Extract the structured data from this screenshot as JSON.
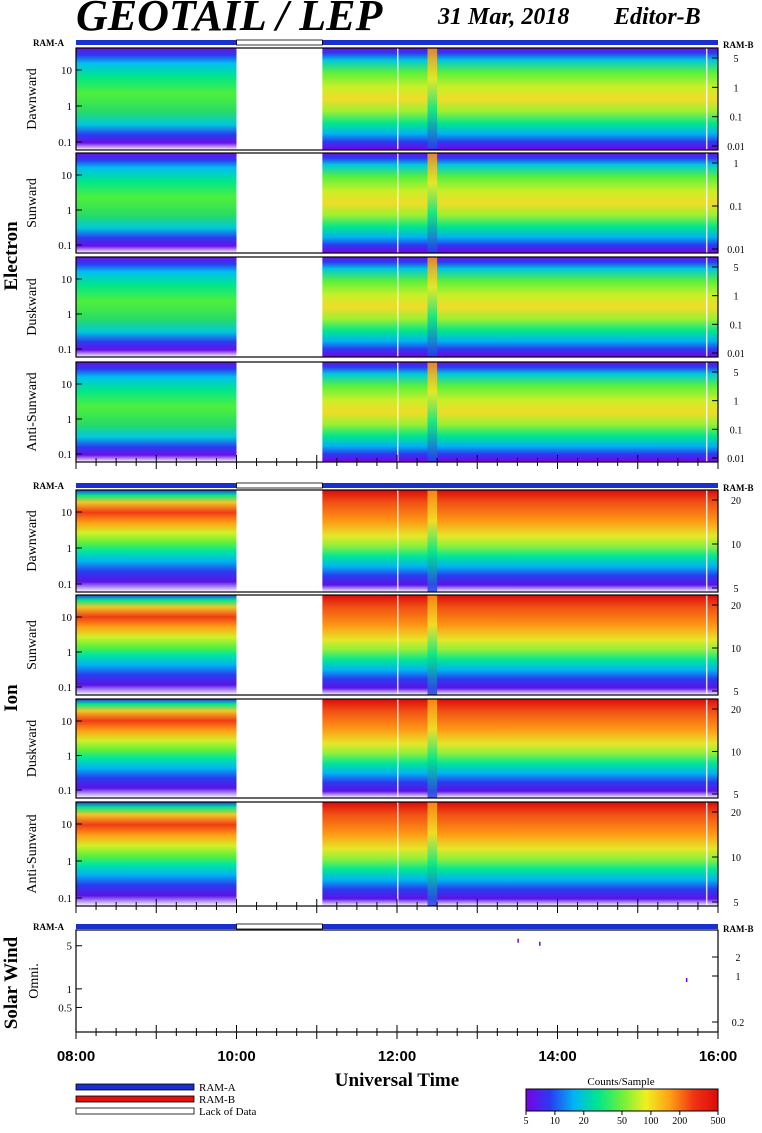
{
  "header": {
    "title": "GEOTAIL / LEP",
    "date": "31 Mar, 2018",
    "editor": "Editor-B"
  },
  "colors": {
    "ram_a": "#1a2fd0",
    "ram_b": "#e01010",
    "lack_of_data": "#ffffff",
    "colorbar": [
      "#7a00e6",
      "#2a3cf0",
      "#00b4f5",
      "#00e68c",
      "#6ef03c",
      "#f0f01e",
      "#ffa014",
      "#f03214",
      "#dc0a0a"
    ]
  },
  "chart_data": [
    {
      "type": "heatmap",
      "group": "Electron",
      "panels": [
        {
          "label": "Dawnward",
          "y_ticks": [
            "10",
            "1",
            "0.1"
          ],
          "right_ticks": [
            "5",
            "1",
            "0.1",
            "0.01"
          ]
        },
        {
          "label": "Sunward",
          "y_ticks": [
            "10",
            "1",
            "0.1"
          ],
          "right_ticks": [
            "1",
            "0.1",
            "0.01"
          ]
        },
        {
          "label": "Duskward",
          "y_ticks": [
            "10",
            "1",
            "0.1"
          ],
          "right_ticks": [
            "5",
            "1",
            "0.1",
            "0.01"
          ]
        },
        {
          "label": "Anti-Sunward",
          "y_ticks": [
            "10",
            "1",
            "0.1"
          ],
          "right_ticks": [
            "5",
            "1",
            "0.1",
            "0.01"
          ]
        }
      ],
      "mode_bar": {
        "left_label": "RAM-A",
        "right_label": "RAM-B",
        "lack_of_data_utc": [
          10.0,
          11.07
        ]
      },
      "x_range": [
        8,
        16
      ],
      "data_gaps_utc": [
        [
          10.0,
          11.07
        ]
      ]
    },
    {
      "type": "heatmap",
      "group": "Ion",
      "panels": [
        {
          "label": "Dawnward",
          "y_ticks": [
            "10",
            "1",
            "0.1"
          ],
          "right_ticks": [
            "20",
            "10",
            "5"
          ]
        },
        {
          "label": "Sunward",
          "y_ticks": [
            "10",
            "1",
            "0.1"
          ],
          "right_ticks": [
            "20",
            "10",
            "5"
          ]
        },
        {
          "label": "Duskward",
          "y_ticks": [
            "10",
            "1",
            "0.1"
          ],
          "right_ticks": [
            "20",
            "10",
            "5"
          ]
        },
        {
          "label": "Anti-Sunward",
          "y_ticks": [
            "10",
            "1",
            "0.1"
          ],
          "right_ticks": [
            "20",
            "10",
            "5"
          ]
        }
      ],
      "mode_bar": {
        "left_label": "RAM-A",
        "right_label": "RAM-B",
        "lack_of_data_utc": [
          10.0,
          11.07
        ]
      },
      "x_range": [
        8,
        16
      ],
      "data_gaps_utc": [
        [
          10.0,
          11.07
        ]
      ]
    },
    {
      "type": "scatter",
      "group": "Solar Wind",
      "panels": [
        {
          "label": "Omni.",
          "y_ticks": [
            "5",
            "1",
            "0.5"
          ],
          "right_ticks": [
            "2",
            "1",
            "0.2"
          ]
        }
      ],
      "mode_bar": {
        "left_label": "RAM-A",
        "right_label": "RAM-B",
        "lack_of_data_utc": [
          10.0,
          11.07
        ]
      },
      "x_range": [
        8,
        16
      ],
      "points": [
        {
          "x": 13.5,
          "y": 6.5
        },
        {
          "x": 13.77,
          "y": 5.8
        },
        {
          "x": 15.6,
          "y": 1.5
        }
      ]
    }
  ],
  "x_axis": {
    "ticks": [
      "08:00",
      "10:00",
      "12:00",
      "14:00",
      "16:00"
    ],
    "label": "Universal Time"
  },
  "legend": {
    "items": [
      "RAM-A",
      "RAM-B",
      "Lack of Data"
    ]
  },
  "colorbar": {
    "title": "Counts/Sample",
    "ticks": [
      "5",
      "10",
      "20",
      "50",
      "100",
      "200",
      "500"
    ]
  }
}
